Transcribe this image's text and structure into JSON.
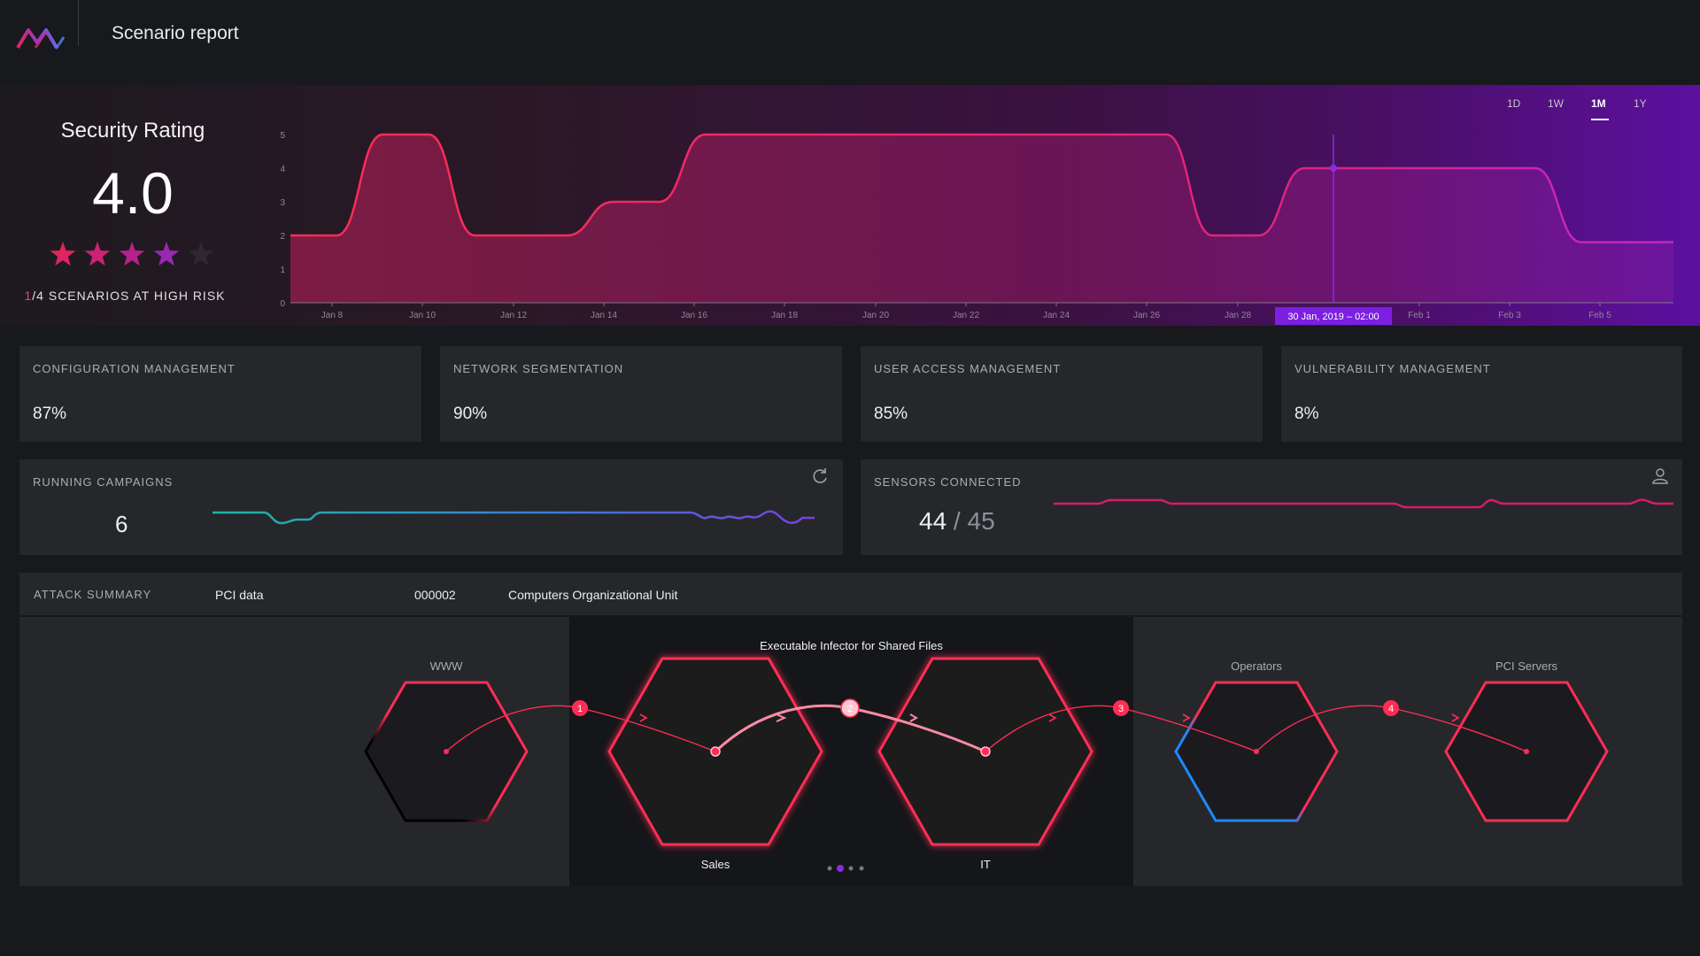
{
  "header": {
    "title": "Scenario report",
    "logo_icon": "brand-logo-icon"
  },
  "security_rating": {
    "title": "Security Rating",
    "value": "4.0",
    "stars": 4,
    "stars_max": 5,
    "risk_count": "1",
    "risk_text": "/4 SCENARIOS AT HIGH RISK"
  },
  "time_ranges": [
    "1D",
    "1W",
    "1M",
    "1Y"
  ],
  "active_range": "1M",
  "chart_data": {
    "type": "area",
    "y_ticks": [
      "0",
      "1",
      "2",
      "3",
      "4",
      "5"
    ],
    "ylim": [
      0,
      5
    ],
    "x_ticks": [
      "Jan 8",
      "Jan 10",
      "Jan 12",
      "Jan 14",
      "Jan 16",
      "Jan 18",
      "Jan 20",
      "Jan 22",
      "Jan 24",
      "Jan 26",
      "Jan 28",
      "Feb 1",
      "Feb 3",
      "Feb 5"
    ],
    "series": [
      {
        "values": [
          2,
          2,
          5,
          5,
          2,
          2,
          2,
          3,
          3,
          5,
          5,
          5,
          5,
          5,
          5,
          5,
          5,
          5,
          5,
          5,
          2,
          2,
          4,
          4,
          4,
          4,
          4,
          4,
          1.8,
          1.8,
          1.8
        ]
      }
    ],
    "tooltip": "30 Jan, 2019 – 02:00",
    "grid": false
  },
  "metrics": [
    {
      "label": "CONFIGURATION MANAGEMENT",
      "value": "87%"
    },
    {
      "label": "NETWORK SEGMENTATION",
      "value": "90%"
    },
    {
      "label": "USER ACCESS MANAGEMENT",
      "value": "85%"
    },
    {
      "label": "VULNERABILITY MANAGEMENT",
      "value": "8%"
    }
  ],
  "campaigns": {
    "label": "RUNNING CAMPAIGNS",
    "value": "6",
    "icon": "refresh-icon"
  },
  "sensors": {
    "label": "SENSORS CONNECTED",
    "connected": "44",
    "separator": " / ",
    "total": "45",
    "icon": "user-icon"
  },
  "attack_summary": {
    "label": "ATTACK SUMMARY",
    "target": "PCI data",
    "id": "000002",
    "unit": "Computers Organizational Unit"
  },
  "attack_graph": {
    "title": "Executable Infector for Shared Files",
    "nodes": [
      "WWW",
      "Sales",
      "IT",
      "Operators",
      "PCI Servers"
    ],
    "steps": [
      "1",
      "2",
      "3",
      "4"
    ]
  }
}
